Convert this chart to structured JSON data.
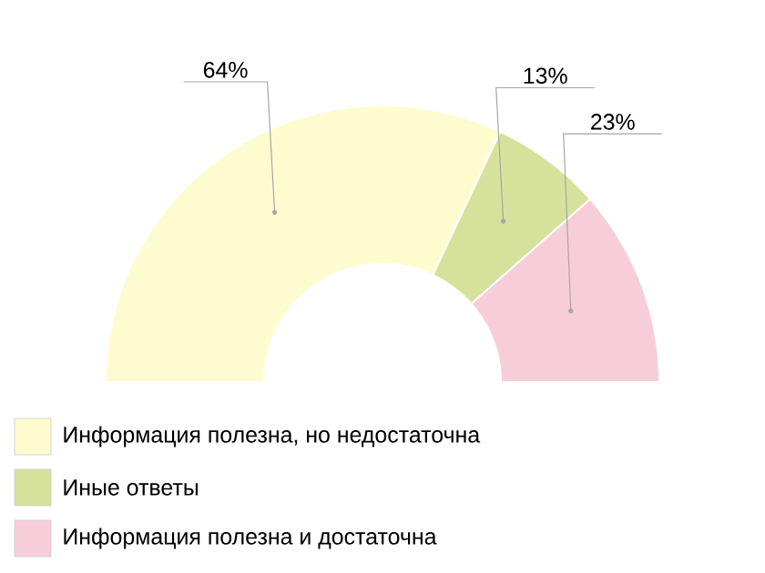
{
  "chart_data": {
    "type": "donut",
    "categories": [
      "Информация полезна, но недостаточна",
      "Иные ответы",
      "Информация полезна и достаточна"
    ],
    "values": [
      64,
      13,
      23
    ],
    "colors": [
      "#fefccf",
      "#d6e19b",
      "#f8cdda"
    ],
    "value_labels": [
      "64%",
      "13%",
      "23%"
    ],
    "legend": "bottom left"
  }
}
